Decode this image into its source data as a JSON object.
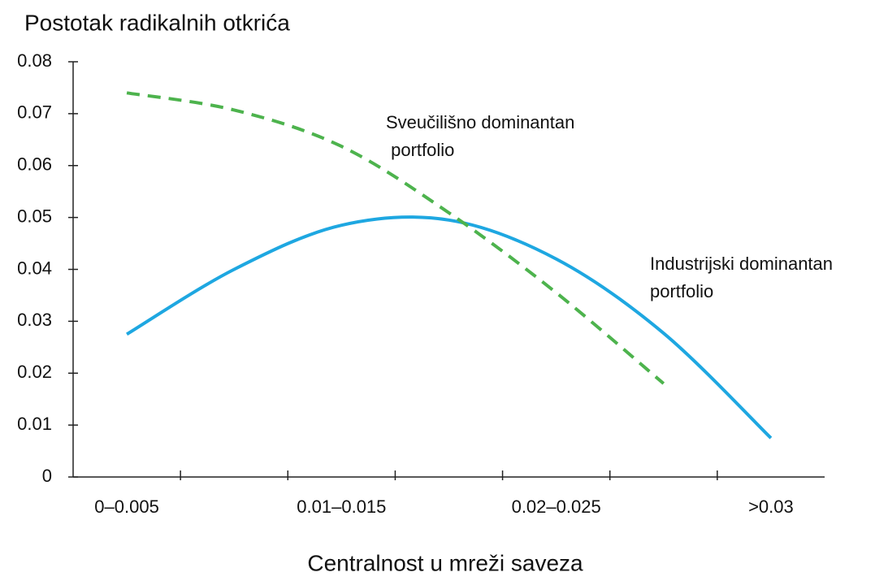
{
  "chart_data": {
    "type": "line",
    "title": "Postotak radikalnih otkrića",
    "x_label": "Centralnost u mreži saveza",
    "categories": [
      "0–0.005",
      null,
      "0.01–0.015",
      null,
      "0.02–0.025",
      null,
      ">0.03"
    ],
    "series": [
      {
        "color": "#1ea7e1",
        "dashed": false,
        "values": [
          0.0275,
          0.04,
          0.0485,
          0.0495,
          0.042,
          0.0277,
          0.0075
        ]
      },
      {
        "color": "#4db34d",
        "dashed": true,
        "values": [
          0.074,
          0.0707,
          0.0637,
          0.0509,
          0.0355,
          0.018,
          null
        ]
      }
    ],
    "annotations": [
      {
        "lines": [
          "Sveučilišno dominantan",
          " portfolio"
        ]
      },
      {
        "lines": [
          "Industrijski dominantan",
          "portfolio"
        ]
      }
    ],
    "ylim": [
      0,
      0.08
    ],
    "yticks": [
      0,
      0.01,
      0.02,
      0.03,
      0.04,
      0.05,
      0.06,
      0.07,
      0.08
    ],
    "grid": false
  }
}
